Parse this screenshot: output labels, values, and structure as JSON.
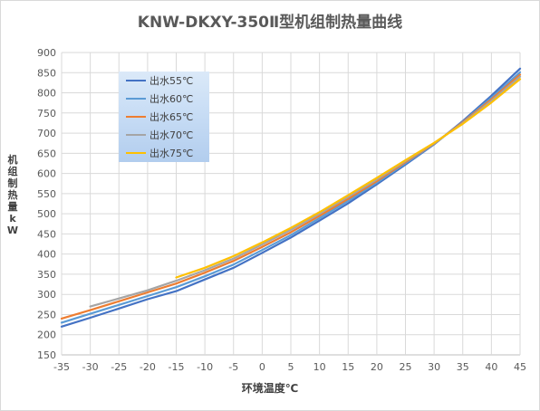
{
  "chart_data": {
    "type": "line",
    "title": "KNW-DKXY-350Ⅱ型机组制热量曲线",
    "xlabel": "环境温度℃",
    "ylabel": "机组制热量kW",
    "xlim": [
      -35,
      45
    ],
    "ylim": [
      150,
      900
    ],
    "x_ticks": [
      -35,
      -30,
      -25,
      -20,
      -15,
      -10,
      -5,
      0,
      5,
      10,
      15,
      20,
      25,
      30,
      35,
      40,
      45
    ],
    "y_ticks": [
      150,
      200,
      250,
      300,
      350,
      400,
      450,
      500,
      550,
      600,
      650,
      700,
      750,
      800,
      850,
      900
    ],
    "grid": true,
    "legend_position": "top-left",
    "series": [
      {
        "name": "出水55℃",
        "color": "#4472c4",
        "x": [
          -35,
          -30,
          -25,
          -20,
          -15,
          -10,
          -5,
          0,
          5,
          10,
          15,
          20,
          25,
          30,
          35,
          40,
          45
        ],
        "y": [
          220,
          242,
          265,
          288,
          308,
          337,
          366,
          403,
          441,
          483,
          526,
          573,
          622,
          672,
          730,
          793,
          860
        ]
      },
      {
        "name": "出水60℃",
        "color": "#5b9bd5",
        "x": [
          -35,
          -30,
          -25,
          -20,
          -15,
          -10,
          -5,
          0,
          5,
          10,
          15,
          20,
          25,
          30,
          35,
          40,
          45
        ],
        "y": [
          230,
          252,
          274,
          296,
          318,
          345,
          374,
          410,
          447,
          489,
          532,
          577,
          625,
          673,
          728,
          788,
          851
        ]
      },
      {
        "name": "出水65℃",
        "color": "#ed7d31",
        "x": [
          -35,
          -30,
          -25,
          -20,
          -15,
          -10,
          -5,
          0,
          5,
          10,
          15,
          20,
          25,
          30,
          35,
          40,
          45
        ],
        "y": [
          240,
          261,
          283,
          305,
          327,
          354,
          383,
          418,
          454,
          495,
          537,
          581,
          628,
          674,
          727,
          784,
          845
        ]
      },
      {
        "name": "出水70℃",
        "color": "#a5a5a5",
        "x": [
          -30,
          -25,
          -20,
          -15,
          -10,
          -5,
          0,
          5,
          10,
          15,
          20,
          25,
          30,
          35,
          40,
          45
        ],
        "y": [
          270,
          290,
          310,
          334,
          360,
          389,
          424,
          460,
          500,
          542,
          585,
          631,
          675,
          725,
          780,
          840
        ]
      },
      {
        "name": "出水75℃",
        "color": "#ffc000",
        "x": [
          -15,
          -10,
          -5,
          0,
          5,
          10,
          15,
          20,
          25,
          30,
          35,
          40,
          45
        ],
        "y": [
          342,
          366,
          395,
          429,
          465,
          504,
          546,
          589,
          633,
          676,
          723,
          776,
          834
        ]
      }
    ]
  }
}
